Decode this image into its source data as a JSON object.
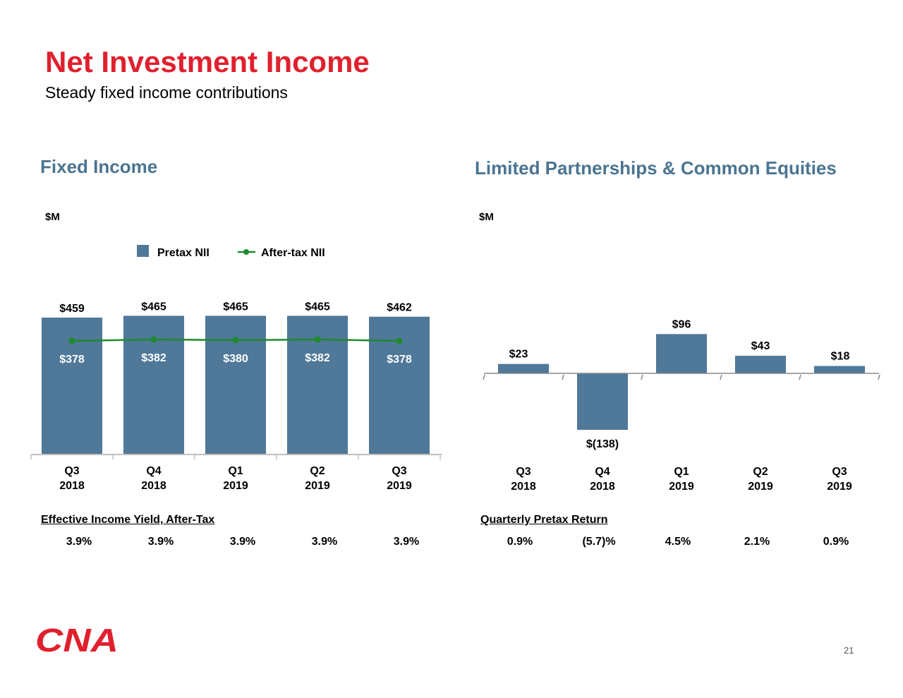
{
  "header": {
    "title": "Net Investment Income",
    "subtitle": "Steady fixed income contributions"
  },
  "fixed_income": {
    "section_title": "Fixed Income",
    "unit": "$M",
    "metric_label": "Effective Income Yield, After-Tax",
    "metric_values": [
      "3.9%",
      "3.9%",
      "3.9%",
      "3.9%",
      "3.9%"
    ]
  },
  "lp_equities": {
    "section_title": "Limited Partnerships & Common Equities",
    "unit": "$M",
    "metric_label": "Quarterly Pretax Return",
    "metric_values": [
      "0.9%",
      "(5.7)%",
      "4.5%",
      "2.1%",
      "0.9%"
    ]
  },
  "colors": {
    "bar": "#4f7899",
    "line": "#1e8a2d",
    "title": "#e0202e",
    "section": "#4a7591",
    "logo": "#e0202e"
  },
  "chart_data": [
    {
      "type": "bar",
      "categories": [
        [
          "Q3",
          "2018"
        ],
        [
          "Q4",
          "2018"
        ],
        [
          "Q1",
          "2019"
        ],
        [
          "Q2",
          "2019"
        ],
        [
          "Q3",
          "2019"
        ]
      ],
      "series": [
        {
          "name": "Pretax NII",
          "type": "bar",
          "values": [
            459,
            465,
            465,
            465,
            462
          ],
          "labels": [
            "$459",
            "$465",
            "$465",
            "$465",
            "$462"
          ]
        },
        {
          "name": "After-tax NII",
          "type": "line",
          "values": [
            378,
            382,
            380,
            382,
            378
          ],
          "labels": [
            "$378",
            "$382",
            "$380",
            "$382",
            "$378"
          ]
        }
      ],
      "ylim": [
        0,
        500
      ],
      "legend": "top-center",
      "grid": false
    },
    {
      "type": "bar",
      "categories": [
        [
          "Q3",
          "2018"
        ],
        [
          "Q4",
          "2018"
        ],
        [
          "Q1",
          "2019"
        ],
        [
          "Q2",
          "2019"
        ],
        [
          "Q3",
          "2019"
        ]
      ],
      "series": [
        {
          "values": [
            23,
            -138,
            96,
            43,
            18
          ],
          "labels": [
            "$23",
            "$(138)",
            "$96",
            "$43",
            "$18"
          ]
        }
      ],
      "ylim": [
        -150,
        110
      ],
      "grid": false
    }
  ],
  "footer": {
    "logo_text": "CNA",
    "page_number": "21"
  }
}
